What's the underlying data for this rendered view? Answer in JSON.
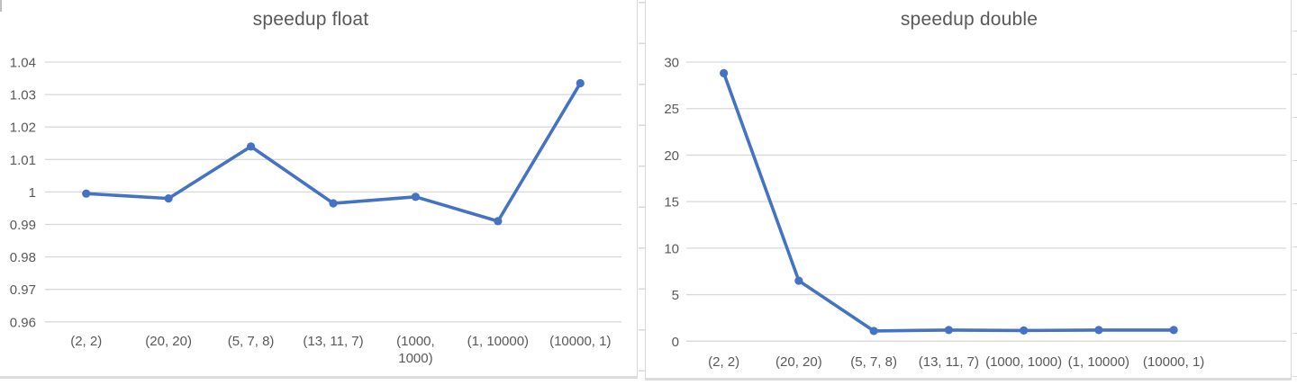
{
  "colors": {
    "series": "#4472C4",
    "grid": "#D9D9D9",
    "text": "#595959",
    "panel_border": "#D9D9D9"
  },
  "chart_data": [
    {
      "type": "line",
      "title": "speedup float",
      "categories": [
        "(2, 2)",
        "(20, 20)",
        "(5, 7, 8)",
        "(13, 11, 7)",
        "(1000, 1000)",
        "(1, 10000)",
        "(10000, 1)"
      ],
      "category_label_lines": [
        [
          "(2, 2)"
        ],
        [
          "(20, 20)"
        ],
        [
          "(5, 7, 8)"
        ],
        [
          "(13, 11, 7)"
        ],
        [
          "(1000,",
          "1000)"
        ],
        [
          "(1, 10000)"
        ],
        [
          "(10000, 1)"
        ]
      ],
      "values": [
        0.9995,
        0.998,
        1.014,
        0.9965,
        0.9985,
        0.991,
        1.0335
      ],
      "ylim": [
        0.96,
        1.04
      ],
      "ytick_labels": [
        "1.04",
        "1.03",
        "1.02",
        "1.01",
        "1",
        "0.99",
        "0.98",
        "0.97",
        "0.96"
      ],
      "grid": true,
      "legend": "none",
      "category_slots": 7,
      "marker": "circle"
    },
    {
      "type": "line",
      "title": "speedup double",
      "categories": [
        "(2, 2)",
        "(20, 20)",
        "(5, 7, 8)",
        "(13, 11, 7)",
        "(1000, 1000)",
        "(1, 10000)",
        "(10000, 1)"
      ],
      "category_label_lines": [
        [
          "(2, 2)"
        ],
        [
          "(20, 20)"
        ],
        [
          "(5, 7, 8)"
        ],
        [
          "(13, 11, 7)"
        ],
        [
          "(1000, 1000)"
        ],
        [
          "(1, 10000)"
        ],
        [
          "(10000, 1)"
        ]
      ],
      "values": [
        28.8,
        6.5,
        1.1,
        1.2,
        1.15,
        1.2,
        1.2
      ],
      "ylim": [
        0,
        30
      ],
      "ytick_labels": [
        "30",
        "25",
        "20",
        "15",
        "10",
        "5",
        "0"
      ],
      "grid": true,
      "legend": "none",
      "category_slots": 8,
      "marker": "circle"
    }
  ]
}
